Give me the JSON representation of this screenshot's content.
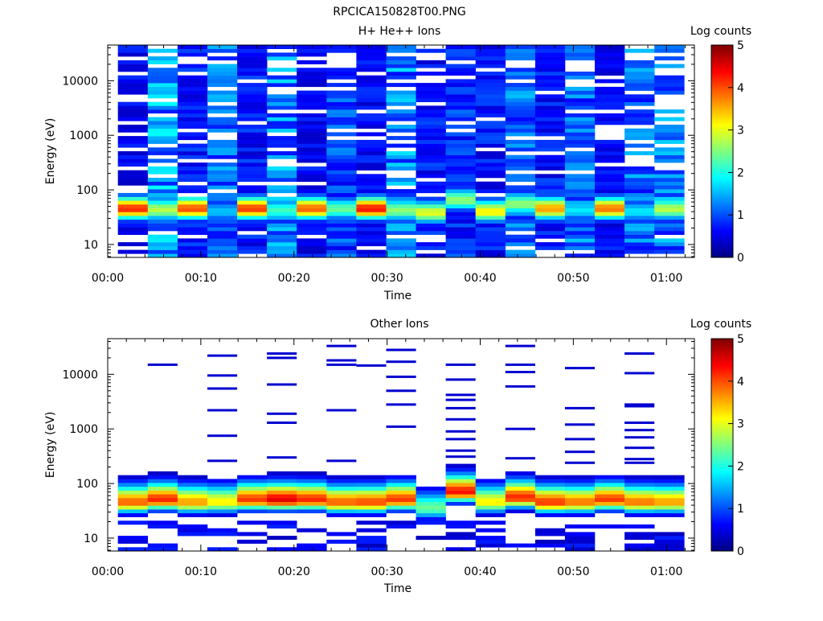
{
  "page_title": "RPCICA150828T00.PNG",
  "chart_data": [
    {
      "type": "heatmap",
      "title": "H+ He++ Ions",
      "xlabel": "Time",
      "ylabel": "Energy (eV)",
      "y_scale": "log",
      "ylim": [
        5.8,
        45000
      ],
      "xlim_minutes": [
        0,
        63
      ],
      "x_tick_labels": [
        "00:00",
        "00:10",
        "00:20",
        "00:30",
        "00:40",
        "00:50",
        "01:00"
      ],
      "y_tick_labels": [
        "10",
        "100",
        "1000",
        "10000"
      ],
      "colorbar": {
        "label": "Log counts",
        "range": [
          0,
          5
        ],
        "tick_labels": [
          "0",
          "1",
          "2",
          "3",
          "4",
          "5"
        ],
        "colormap": "jet"
      },
      "time_columns_minutes": [
        2.7,
        5.9,
        9.1,
        12.3,
        15.5,
        18.7,
        21.9,
        25.1,
        28.3,
        31.5,
        34.7,
        37.9,
        41.1,
        44.3,
        47.5,
        50.7,
        53.9,
        57.1,
        60.3
      ],
      "peak_energy_eV": [
        45,
        43,
        45,
        40,
        45,
        42,
        45,
        44,
        45,
        42,
        38,
        65,
        40,
        55,
        45,
        42,
        45,
        40,
        44
      ],
      "peak_log_counts": [
        4.2,
        2.8,
        4.0,
        1.6,
        4.1,
        2.2,
        3.9,
        2.4,
        4.3,
        2.6,
        3.0,
        2.6,
        3.2,
        2.6,
        3.6,
        1.8,
        3.8,
        1.8,
        2.8
      ],
      "background_log_counts_high_energy": [
        0.6,
        1.3,
        0.7,
        1.1,
        0.7,
        1.2,
        0.6,
        0.9,
        0.6,
        1.2,
        0.7,
        0.8,
        0.7,
        1.1,
        0.7,
        1.1,
        0.6,
        1.1,
        1.2
      ]
    },
    {
      "type": "heatmap",
      "title": "Other Ions",
      "xlabel": "Time",
      "ylabel": "Energy (eV)",
      "y_scale": "log",
      "ylim": [
        5.8,
        45000
      ],
      "xlim_minutes": [
        0,
        63
      ],
      "x_tick_labels": [
        "00:00",
        "00:10",
        "00:20",
        "00:30",
        "00:40",
        "00:50",
        "01:00"
      ],
      "y_tick_labels": [
        "10",
        "100",
        "1000",
        "10000"
      ],
      "colorbar": {
        "label": "Log counts",
        "range": [
          0,
          5
        ],
        "tick_labels": [
          "0",
          "1",
          "2",
          "3",
          "4",
          "5"
        ],
        "colormap": "jet"
      },
      "time_columns_minutes": [
        2.7,
        5.9,
        9.1,
        12.3,
        15.5,
        18.7,
        21.9,
        25.1,
        28.3,
        31.5,
        34.7,
        37.9,
        41.1,
        44.3,
        47.5,
        50.7,
        53.9,
        57.1,
        60.3
      ],
      "peak_energy_eV": [
        45,
        50,
        45,
        45,
        50,
        50,
        50,
        45,
        45,
        50,
        35,
        70,
        45,
        55,
        45,
        45,
        50,
        45,
        45
      ],
      "peak_log_counts": [
        3.9,
        4.2,
        3.6,
        3.2,
        4.1,
        4.5,
        4.2,
        3.9,
        4.0,
        4.1,
        2.4,
        4.3,
        3.2,
        4.2,
        4.1,
        3.8,
        4.1,
        3.8,
        3.6
      ],
      "sparse_events_energy_eV": [
        [],
        [
          15000
        ],
        [],
        [
          22000,
          9500,
          5500,
          2200,
          750,
          260
        ],
        [],
        [
          24000,
          20000,
          6500,
          1900,
          1300,
          300
        ],
        [],
        [
          33000,
          18000,
          15000,
          2200,
          260
        ],
        [
          14500
        ],
        [
          28000,
          17000,
          9000,
          5000,
          2800,
          1100
        ],
        [],
        [
          15000,
          8000,
          4200,
          3400,
          2400,
          1500,
          900,
          650,
          400,
          310
        ],
        [],
        [
          33000,
          15000,
          11000,
          6000,
          1000,
          290
        ],
        [],
        [
          13000,
          2400,
          1200,
          650,
          380,
          240
        ],
        [],
        [
          24000,
          10500,
          2800,
          2600,
          1300,
          950,
          700,
          450,
          280,
          240
        ],
        []
      ]
    }
  ]
}
